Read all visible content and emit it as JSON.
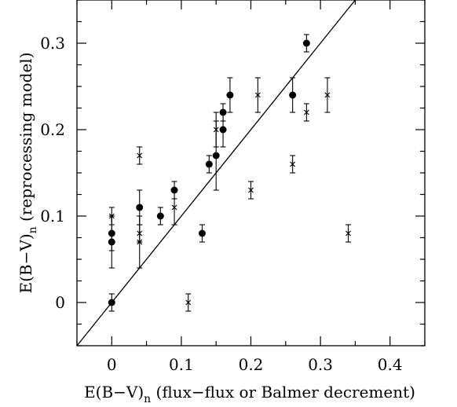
{
  "chart_data": {
    "type": "scatter",
    "xlabel": "E(B−V)",
    "xlabel_sub": "n",
    "xlabel_rest": " (flux−flux or Balmer decrement)",
    "ylabel": "E(B−V)",
    "ylabel_sub": "n",
    "ylabel_rest": " (reprocessing model)",
    "xlim": [
      -0.05,
      0.45
    ],
    "ylim": [
      -0.05,
      0.35
    ],
    "x_ticks": [
      0,
      0.1,
      0.2,
      0.3,
      0.4
    ],
    "x_tick_labels": [
      "0",
      "0.1",
      "0.2",
      "0.3",
      "0.4"
    ],
    "y_ticks": [
      0,
      0.1,
      0.2,
      0.3
    ],
    "y_tick_labels": [
      "0",
      "0.1",
      "0.2",
      "0.3"
    ],
    "reference_line": {
      "slope": 1,
      "intercept": 0
    },
    "series": [
      {
        "marker": "filled-circle",
        "points": [
          {
            "x": 0.0,
            "y": 0.0,
            "err": 0.01
          },
          {
            "x": 0.0,
            "y": 0.07,
            "err": 0.03
          },
          {
            "x": 0.0,
            "y": 0.08,
            "err": 0.02
          },
          {
            "x": 0.04,
            "y": 0.11,
            "err": 0.02
          },
          {
            "x": 0.07,
            "y": 0.1,
            "err": 0.01
          },
          {
            "x": 0.09,
            "y": 0.13,
            "err": 0.01
          },
          {
            "x": 0.13,
            "y": 0.08,
            "err": 0.01
          },
          {
            "x": 0.14,
            "y": 0.16,
            "err": 0.01
          },
          {
            "x": 0.15,
            "y": 0.17,
            "err": 0.04
          },
          {
            "x": 0.16,
            "y": 0.2,
            "err": 0.02
          },
          {
            "x": 0.16,
            "y": 0.22,
            "err": 0.01
          },
          {
            "x": 0.17,
            "y": 0.24,
            "err": 0.02
          },
          {
            "x": 0.26,
            "y": 0.24,
            "err": 0.02
          },
          {
            "x": 0.28,
            "y": 0.3,
            "err": 0.01
          }
        ]
      },
      {
        "marker": "cross",
        "points": [
          {
            "x": 0.0,
            "y": 0.1,
            "err": 0.01
          },
          {
            "x": 0.04,
            "y": 0.17,
            "err": 0.01
          },
          {
            "x": 0.04,
            "y": 0.08,
            "err": 0.01
          },
          {
            "x": 0.04,
            "y": 0.07,
            "err": 0.03
          },
          {
            "x": 0.09,
            "y": 0.11,
            "err": 0.02
          },
          {
            "x": 0.11,
            "y": 0.0,
            "err": 0.01
          },
          {
            "x": 0.15,
            "y": 0.2,
            "err": 0.02
          },
          {
            "x": 0.2,
            "y": 0.13,
            "err": 0.01
          },
          {
            "x": 0.21,
            "y": 0.24,
            "err": 0.02
          },
          {
            "x": 0.26,
            "y": 0.16,
            "err": 0.01
          },
          {
            "x": 0.28,
            "y": 0.22,
            "err": 0.01
          },
          {
            "x": 0.31,
            "y": 0.24,
            "err": 0.02
          },
          {
            "x": 0.34,
            "y": 0.08,
            "err": 0.01
          }
        ]
      }
    ]
  }
}
